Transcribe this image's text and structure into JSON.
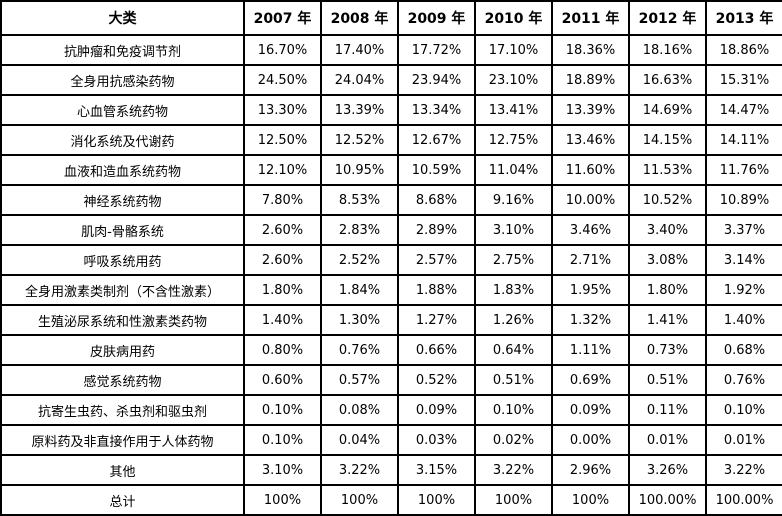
{
  "table": {
    "header": [
      "大类",
      "2007 年",
      "2008 年",
      "2009 年",
      "2010 年",
      "2011 年",
      "2012 年",
      "2013 年"
    ],
    "rows": [
      {
        "label": "抗肿瘤和免疫调节剂",
        "values": [
          "16.70%",
          "17.40%",
          "17.72%",
          "17.10%",
          "18.36%",
          "18.16%",
          "18.86%"
        ]
      },
      {
        "label": "全身用抗感染药物",
        "values": [
          "24.50%",
          "24.04%",
          "23.94%",
          "23.10%",
          "18.89%",
          "16.63%",
          "15.31%"
        ]
      },
      {
        "label": "心血管系统药物",
        "values": [
          "13.30%",
          "13.39%",
          "13.34%",
          "13.41%",
          "13.39%",
          "14.69%",
          "14.47%"
        ]
      },
      {
        "label": "消化系统及代谢药",
        "values": [
          "12.50%",
          "12.52%",
          "12.67%",
          "12.75%",
          "13.46%",
          "14.15%",
          "14.11%"
        ]
      },
      {
        "label": "血液和造血系统药物",
        "values": [
          "12.10%",
          "10.95%",
          "10.59%",
          "11.04%",
          "11.60%",
          "11.53%",
          "11.76%"
        ]
      },
      {
        "label": "神经系统药物",
        "values": [
          "7.80%",
          "8.53%",
          "8.68%",
          "9.16%",
          "10.00%",
          "10.52%",
          "10.89%"
        ]
      },
      {
        "label": "肌肉-骨骼系统",
        "values": [
          "2.60%",
          "2.83%",
          "2.89%",
          "3.10%",
          "3.46%",
          "3.40%",
          "3.37%"
        ]
      },
      {
        "label": "呼吸系统用药",
        "values": [
          "2.60%",
          "2.52%",
          "2.57%",
          "2.75%",
          "2.71%",
          "3.08%",
          "3.14%"
        ]
      },
      {
        "label": "全身用激素类制剂（不含性激素）",
        "values": [
          "1.80%",
          "1.84%",
          "1.88%",
          "1.83%",
          "1.95%",
          "1.80%",
          "1.92%"
        ]
      },
      {
        "label": "生殖泌尿系统和性激素类药物",
        "values": [
          "1.40%",
          "1.30%",
          "1.27%",
          "1.26%",
          "1.32%",
          "1.41%",
          "1.40%"
        ]
      },
      {
        "label": "皮肤病用药",
        "values": [
          "0.80%",
          "0.76%",
          "0.66%",
          "0.64%",
          "1.11%",
          "0.73%",
          "0.68%"
        ]
      },
      {
        "label": "感觉系统药物",
        "values": [
          "0.60%",
          "0.57%",
          "0.52%",
          "0.51%",
          "0.69%",
          "0.51%",
          "0.76%"
        ]
      },
      {
        "label": "抗寄生虫药、杀虫剂和驱虫剂",
        "values": [
          "0.10%",
          "0.08%",
          "0.09%",
          "0.10%",
          "0.09%",
          "0.11%",
          "0.10%"
        ]
      },
      {
        "label": "原料药及非直接作用于人体药物",
        "values": [
          "0.10%",
          "0.04%",
          "0.03%",
          "0.02%",
          "0.00%",
          "0.01%",
          "0.01%"
        ]
      },
      {
        "label": "其他",
        "values": [
          "3.10%",
          "3.22%",
          "3.15%",
          "3.22%",
          "2.96%",
          "3.26%",
          "3.22%"
        ]
      },
      {
        "label": "总计",
        "values": [
          "100%",
          "100%",
          "100%",
          "100%",
          "100%",
          "100.00%",
          "100.00%"
        ]
      }
    ],
    "colors": {
      "border": "#000000",
      "text": "#000000",
      "background": "#ffffff"
    }
  }
}
